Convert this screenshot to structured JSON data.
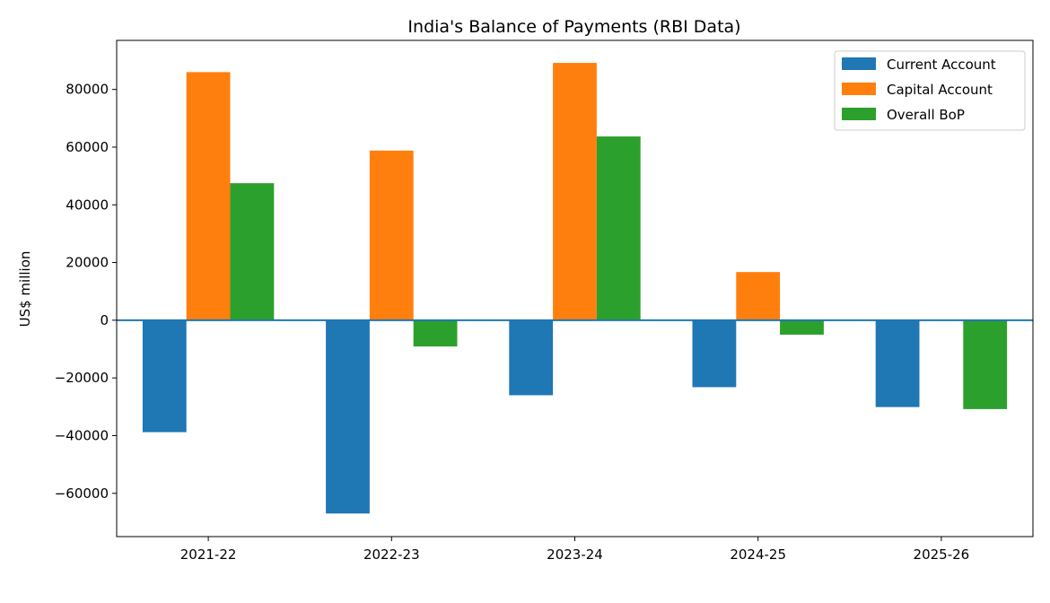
{
  "chart_data": {
    "type": "bar",
    "title": "India's Balance of Payments (RBI Data)",
    "xlabel": "",
    "ylabel": "US$ million",
    "categories": [
      "2021-22",
      "2022-23",
      "2023-24",
      "2024-25",
      "2025-26"
    ],
    "series": [
      {
        "name": "Current Account",
        "color": "#1f77b4",
        "values": [
          -38800,
          -67000,
          -26000,
          -23200,
          -30100
        ]
      },
      {
        "name": "Capital Account",
        "color": "#ff7f0e",
        "values": [
          86000,
          58800,
          89200,
          16700,
          0
        ]
      },
      {
        "name": "Overall BoP",
        "color": "#2ca02c",
        "values": [
          47500,
          -9100,
          63700,
          -5000,
          -30800
        ]
      }
    ],
    "ylim": [
      -75000,
      97000
    ],
    "yticks": [
      -60000,
      -40000,
      -20000,
      0,
      20000,
      40000,
      60000,
      80000
    ],
    "ytick_labels": [
      "−60000",
      "−40000",
      "−20000",
      "0",
      "20000",
      "40000",
      "60000",
      "80000"
    ],
    "zero_line_color": "#1f77b4",
    "legend_position": "top-right",
    "grid": false
  }
}
